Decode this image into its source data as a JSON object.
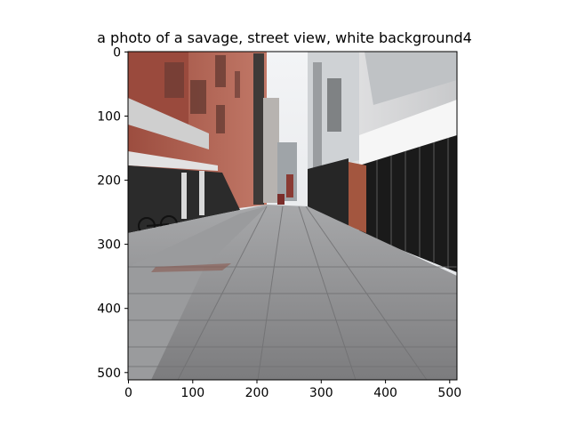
{
  "figure": {
    "title": "a photo of a savage, street view, white background4"
  },
  "image": {
    "description_icon": "street-photo",
    "palette": {
      "sky": "#eef0f2",
      "brick": "#a8584a",
      "pavement": "#8f8f91",
      "shadow": "#1c1c1c",
      "storefront": "#f2f2f2"
    }
  },
  "axes": {
    "x_ticks": [
      "0",
      "100",
      "200",
      "300",
      "400",
      "500"
    ],
    "y_ticks": [
      "0",
      "100",
      "200",
      "300",
      "400",
      "500"
    ],
    "x_range": [
      0,
      512
    ],
    "y_range": [
      0,
      512
    ]
  }
}
